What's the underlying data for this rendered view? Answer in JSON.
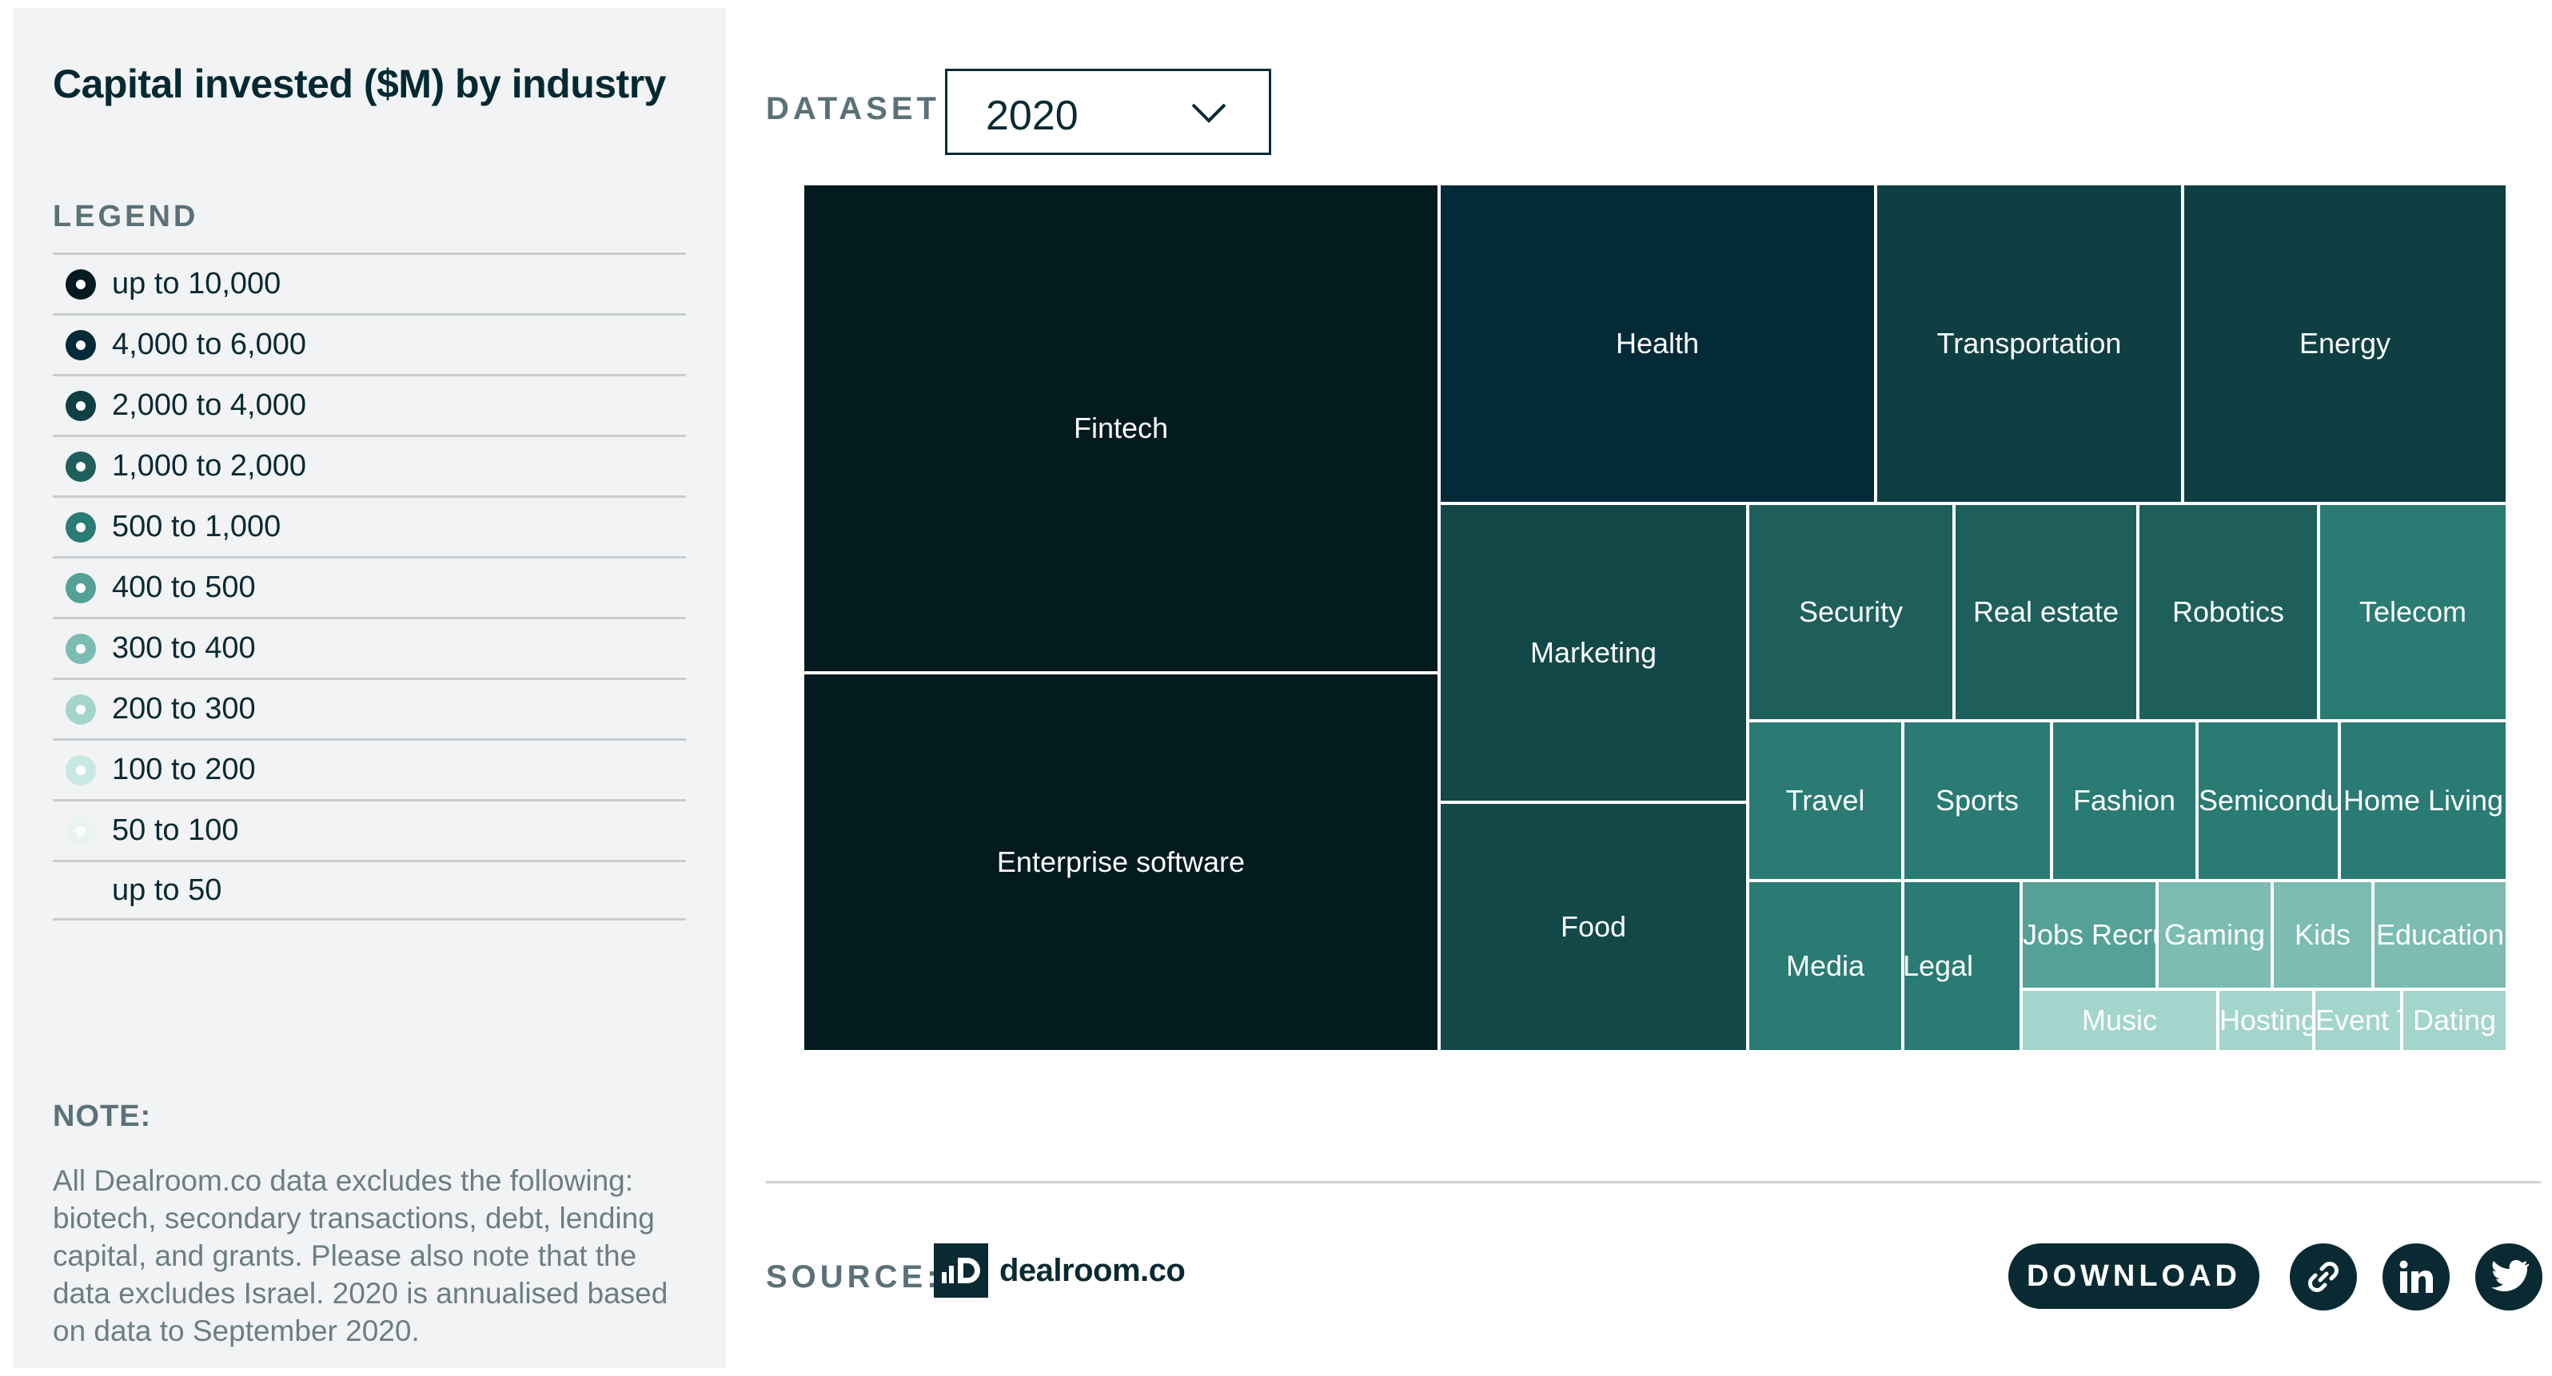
{
  "sidebar": {
    "title": "Capital invested ($M) by industry",
    "legend_label": "LEGEND",
    "legend": [
      {
        "label": "up to 10,000",
        "color": "#031a1f"
      },
      {
        "label": "4,000 to 6,000",
        "color": "#022a37"
      },
      {
        "label": "2,000 to 4,000",
        "color": "#0f3f42"
      },
      {
        "label": "1,000 to 2,000",
        "color": "#1e5f5c"
      },
      {
        "label": "500 to 1,000",
        "color": "#2a7b74"
      },
      {
        "label": "400 to 500",
        "color": "#55a097"
      },
      {
        "label": "300 to 400",
        "color": "#7cbcb2"
      },
      {
        "label": "200 to 300",
        "color": "#a3d5cc"
      },
      {
        "label": "100 to 200",
        "color": "#c8e8e2"
      },
      {
        "label": "50 to 100",
        "color": "#e9f4f2"
      },
      {
        "label": "up to 50",
        "color": "#f2f3f4"
      }
    ],
    "note_label": "NOTE:",
    "note_text": "All Dealroom.co data excludes the following: biotech, secondary transactions, debt, lending capital, and grants. Please also note that the data excludes Israel. 2020 is annualised based on data to September 2020."
  },
  "dataset": {
    "label": "DATASET",
    "selected": "2020"
  },
  "chart_data": {
    "type": "treemap",
    "title": "Capital invested ($M) by industry",
    "tiles": [
      {
        "label": "Fintech",
        "band": "up to 10,000",
        "color": "#031a1f"
      },
      {
        "label": "Enterprise software",
        "band": "up to 10,000",
        "color": "#031a1f"
      },
      {
        "label": "Health",
        "band": "4,000 to 6,000",
        "color": "#022a37"
      },
      {
        "label": "Transportation",
        "band": "2,000 to 4,000",
        "color": "#0f3f42"
      },
      {
        "label": "Energy",
        "band": "2,000 to 4,000",
        "color": "#0f3f42"
      },
      {
        "label": "Marketing",
        "band": "2,000 to 4,000",
        "color": "#124848"
      },
      {
        "label": "Food",
        "band": "2,000 to 4,000",
        "color": "#124848"
      },
      {
        "label": "Security",
        "band": "1,000 to 2,000",
        "color": "#1e5f5c"
      },
      {
        "label": "Real estate",
        "band": "1,000 to 2,000",
        "color": "#1e5f5c"
      },
      {
        "label": "Robotics",
        "band": "1,000 to 2,000",
        "color": "#1e5f5c"
      },
      {
        "label": "Telecom",
        "band": "500 to 1,000",
        "color": "#2a7b74"
      },
      {
        "label": "Travel",
        "band": "500 to 1,000",
        "color": "#2a7b74"
      },
      {
        "label": "Sports",
        "band": "500 to 1,000",
        "color": "#2a7b74"
      },
      {
        "label": "Fashion",
        "band": "500 to 1,000",
        "color": "#2a7b74"
      },
      {
        "label": "Semiconductors",
        "band": "500 to 1,000",
        "color": "#2a7b74"
      },
      {
        "label": "Home Living",
        "band": "500 to 1,000",
        "color": "#2a7b74"
      },
      {
        "label": "Media",
        "band": "500 to 1,000",
        "color": "#2a7b74"
      },
      {
        "label": "Legal",
        "band": "500 to 1,000",
        "color": "#2a7b74"
      },
      {
        "label": "Jobs Recruitment",
        "band": "400 to 500",
        "color": "#55a097"
      },
      {
        "label": "Gaming",
        "band": "300 to 400",
        "color": "#7cbcb2"
      },
      {
        "label": "Kids",
        "band": "300 to 400",
        "color": "#7cbcb2"
      },
      {
        "label": "Education",
        "band": "300 to 400",
        "color": "#7cbcb2"
      },
      {
        "label": "Music",
        "band": "200 to 300",
        "color": "#a3d5cc"
      },
      {
        "label": "Hosting",
        "band": "200 to 300",
        "color": "#a3d5cc"
      },
      {
        "label": "Event Tech",
        "band": "200 to 300",
        "color": "#a3d5cc"
      },
      {
        "label": "Dating",
        "band": "200 to 300",
        "color": "#a3d5cc"
      }
    ]
  },
  "footer": {
    "source_label": "SOURCE:",
    "logo_text": "dealroom.co",
    "download_label": "DOWNLOAD",
    "link_icon": "link-icon",
    "linkedin_icon": "linkedin-icon",
    "twitter_icon": "twitter-icon"
  }
}
